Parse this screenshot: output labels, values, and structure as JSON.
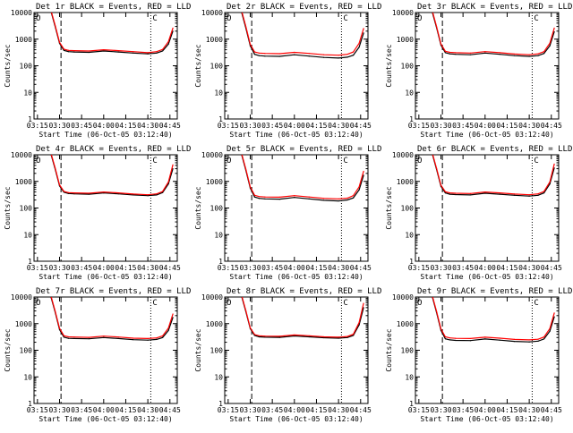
{
  "figure": {
    "ylabel": "Counts/sec",
    "xlabel": "Start Time (06-Oct-05 03:12:40)",
    "marker_left": "O",
    "marker_right": "C"
  },
  "chart_data": [
    {
      "type": "line",
      "title": "Det 1r BLACK = Events, RED = LLD",
      "xlabel": "Start Time (06-Oct-05 03:12:40)",
      "ylabel": "Counts/sec",
      "yscale": "log",
      "ylim": [
        1,
        10000
      ],
      "xlim": [
        "03:12:40",
        "04:50:00"
      ],
      "x_ticks": [
        "03:15",
        "03:30",
        "03:45",
        "04:00",
        "04:15",
        "04:30",
        "04:45"
      ],
      "y_ticks": [
        "1",
        "10",
        "100",
        "1000",
        "10000"
      ],
      "vlines": [
        {
          "x": "03:31",
          "style": "dashed"
        },
        {
          "x": "04:32",
          "style": "dotted"
        }
      ],
      "x": [
        "03:24",
        "03:27",
        "03:30",
        "03:33",
        "03:36",
        "03:40",
        "03:50",
        "04:00",
        "04:10",
        "04:20",
        "04:30",
        "04:36",
        "04:40",
        "04:44",
        "04:47"
      ],
      "series": [
        {
          "name": "Events",
          "color": "#000000",
          "values": [
            12000,
            3000,
            700,
            380,
            340,
            330,
            320,
            360,
            330,
            300,
            280,
            300,
            360,
            650,
            2000
          ]
        },
        {
          "name": "LLD",
          "color": "#ff0000",
          "values": [
            13000,
            3300,
            760,
            420,
            380,
            370,
            360,
            400,
            370,
            340,
            310,
            340,
            410,
            800,
            2600
          ]
        }
      ]
    },
    {
      "type": "line",
      "title": "Det 2r BLACK = Events, RED = LLD",
      "xlabel": "Start Time (06-Oct-05 03:12:40)",
      "ylabel": "Counts/sec",
      "yscale": "log",
      "ylim": [
        1,
        10000
      ],
      "xlim": [
        "03:12:40",
        "04:50:00"
      ],
      "x_ticks": [
        "03:15",
        "03:30",
        "03:45",
        "04:00",
        "04:15",
        "04:30",
        "04:45"
      ],
      "y_ticks": [
        "1",
        "10",
        "100",
        "1000",
        "10000"
      ],
      "vlines": [
        {
          "x": "03:31",
          "style": "dashed"
        },
        {
          "x": "04:32",
          "style": "dotted"
        }
      ],
      "x": [
        "03:24",
        "03:27",
        "03:30",
        "03:33",
        "03:36",
        "03:40",
        "03:50",
        "04:00",
        "04:10",
        "04:20",
        "04:30",
        "04:36",
        "04:40",
        "04:44",
        "04:47"
      ],
      "series": [
        {
          "name": "Events",
          "color": "#000000",
          "values": [
            11000,
            2600,
            560,
            270,
            240,
            230,
            225,
            260,
            230,
            205,
            195,
            210,
            250,
            500,
            1700
          ]
        },
        {
          "name": "LLD",
          "color": "#ff0000",
          "values": [
            12500,
            3000,
            640,
            330,
            300,
            290,
            285,
            320,
            290,
            260,
            250,
            270,
            330,
            700,
            2500
          ]
        }
      ]
    },
    {
      "type": "line",
      "title": "Det 3r BLACK = Events, RED = LLD",
      "xlabel": "Start Time (06-Oct-05 03:12:40)",
      "ylabel": "Counts/sec",
      "yscale": "log",
      "ylim": [
        1,
        10000
      ],
      "xlim": [
        "03:12:40",
        "04:50:00"
      ],
      "x_ticks": [
        "03:15",
        "03:30",
        "03:45",
        "04:00",
        "04:15",
        "04:30",
        "04:45"
      ],
      "y_ticks": [
        "1",
        "10",
        "100",
        "1000",
        "10000"
      ],
      "vlines": [
        {
          "x": "03:31",
          "style": "dashed"
        },
        {
          "x": "04:32",
          "style": "dotted"
        }
      ],
      "x": [
        "03:24",
        "03:27",
        "03:30",
        "03:33",
        "03:36",
        "03:40",
        "03:50",
        "04:00",
        "04:10",
        "04:20",
        "04:30",
        "04:36",
        "04:40",
        "04:44",
        "04:47"
      ],
      "series": [
        {
          "name": "Events",
          "color": "#000000",
          "values": [
            11000,
            2700,
            600,
            310,
            280,
            270,
            260,
            300,
            270,
            240,
            225,
            240,
            290,
            560,
            1900
          ]
        },
        {
          "name": "LLD",
          "color": "#ff0000",
          "values": [
            12500,
            3000,
            660,
            350,
            320,
            310,
            300,
            340,
            310,
            275,
            260,
            280,
            340,
            700,
            2600
          ]
        }
      ]
    },
    {
      "type": "line",
      "title": "Det 4r BLACK = Events, RED = LLD",
      "xlabel": "Start Time (06-Oct-05 03:12:40)",
      "ylabel": "Counts/sec",
      "yscale": "log",
      "ylim": [
        1,
        10000
      ],
      "xlim": [
        "03:12:40",
        "04:50:00"
      ],
      "x_ticks": [
        "03:15",
        "03:30",
        "03:45",
        "04:00",
        "04:15",
        "04:30",
        "04:45"
      ],
      "y_ticks": [
        "1",
        "10",
        "100",
        "1000",
        "10000"
      ],
      "vlines": [
        {
          "x": "03:31",
          "style": "dashed"
        },
        {
          "x": "04:32",
          "style": "dotted"
        }
      ],
      "x": [
        "03:24",
        "03:27",
        "03:30",
        "03:33",
        "03:36",
        "03:40",
        "03:50",
        "04:00",
        "04:10",
        "04:20",
        "04:30",
        "04:36",
        "04:40",
        "04:44",
        "04:47"
      ],
      "series": [
        {
          "name": "Events",
          "color": "#000000",
          "values": [
            11500,
            2900,
            680,
            390,
            350,
            340,
            330,
            370,
            340,
            310,
            290,
            310,
            380,
            800,
            3000
          ]
        },
        {
          "name": "LLD",
          "color": "#ff0000",
          "values": [
            12500,
            3200,
            740,
            420,
            380,
            370,
            360,
            400,
            370,
            335,
            315,
            340,
            420,
            950,
            4200
          ]
        }
      ]
    },
    {
      "type": "line",
      "title": "Det 5r BLACK = Events, RED = LLD",
      "xlabel": "Start Time (06-Oct-05 03:12:40)",
      "ylabel": "Counts/sec",
      "yscale": "log",
      "ylim": [
        1,
        10000
      ],
      "xlim": [
        "03:12:40",
        "04:50:00"
      ],
      "x_ticks": [
        "03:15",
        "03:30",
        "03:45",
        "04:00",
        "04:15",
        "04:30",
        "04:45"
      ],
      "y_ticks": [
        "1",
        "10",
        "100",
        "1000",
        "10000"
      ],
      "vlines": [
        {
          "x": "03:31",
          "style": "dashed"
        },
        {
          "x": "04:32",
          "style": "dotted"
        }
      ],
      "x": [
        "03:24",
        "03:27",
        "03:30",
        "03:33",
        "03:36",
        "03:40",
        "03:50",
        "04:00",
        "04:10",
        "04:20",
        "04:30",
        "04:36",
        "04:40",
        "04:44",
        "04:47"
      ],
      "series": [
        {
          "name": "Events",
          "color": "#000000",
          "values": [
            11000,
            2600,
            560,
            260,
            230,
            220,
            215,
            250,
            220,
            195,
            185,
            200,
            240,
            480,
            1700
          ]
        },
        {
          "name": "LLD",
          "color": "#ff0000",
          "values": [
            12000,
            2900,
            620,
            300,
            270,
            260,
            255,
            290,
            260,
            230,
            220,
            235,
            290,
            620,
            2400
          ]
        }
      ]
    },
    {
      "type": "line",
      "title": "Det 6r BLACK = Events, RED = LLD",
      "xlabel": "Start Time (06-Oct-05 03:12:40)",
      "ylabel": "Counts/sec",
      "yscale": "log",
      "ylim": [
        1,
        10000
      ],
      "xlim": [
        "03:12:40",
        "04:50:00"
      ],
      "x_ticks": [
        "03:15",
        "03:30",
        "03:45",
        "04:00",
        "04:15",
        "04:30",
        "04:45"
      ],
      "y_ticks": [
        "1",
        "10",
        "100",
        "1000",
        "10000"
      ],
      "vlines": [
        {
          "x": "03:31",
          "style": "dashed"
        },
        {
          "x": "04:32",
          "style": "dotted"
        }
      ],
      "x": [
        "03:24",
        "03:27",
        "03:30",
        "03:33",
        "03:36",
        "03:40",
        "03:50",
        "04:00",
        "04:10",
        "04:20",
        "04:30",
        "04:36",
        "04:40",
        "04:44",
        "04:47"
      ],
      "series": [
        {
          "name": "Events",
          "color": "#000000",
          "values": [
            11500,
            2800,
            650,
            370,
            330,
            320,
            310,
            360,
            330,
            300,
            280,
            300,
            370,
            800,
            3200
          ]
        },
        {
          "name": "LLD",
          "color": "#ff0000",
          "values": [
            12500,
            3100,
            720,
            410,
            370,
            360,
            350,
            400,
            370,
            335,
            315,
            340,
            420,
            950,
            4500
          ]
        }
      ]
    },
    {
      "type": "line",
      "title": "Det 7r BLACK = Events, RED = LLD",
      "xlabel": "Start Time (06-Oct-05 03:12:40)",
      "ylabel": "Counts/sec",
      "yscale": "log",
      "ylim": [
        1,
        10000
      ],
      "xlim": [
        "03:12:40",
        "04:50:00"
      ],
      "x_ticks": [
        "03:15",
        "03:30",
        "03:45",
        "04:00",
        "04:15",
        "04:30",
        "04:45"
      ],
      "y_ticks": [
        "1",
        "10",
        "100",
        "1000",
        "10000"
      ],
      "vlines": [
        {
          "x": "03:31",
          "style": "dashed"
        },
        {
          "x": "04:32",
          "style": "dotted"
        }
      ],
      "x": [
        "03:24",
        "03:27",
        "03:30",
        "03:33",
        "03:36",
        "03:40",
        "03:50",
        "04:00",
        "04:10",
        "04:20",
        "04:30",
        "04:36",
        "04:40",
        "04:44",
        "04:47"
      ],
      "series": [
        {
          "name": "Events",
          "color": "#000000",
          "values": [
            11000,
            2700,
            600,
            310,
            280,
            275,
            270,
            300,
            275,
            250,
            240,
            255,
            300,
            550,
            1700
          ]
        },
        {
          "name": "LLD",
          "color": "#ff0000",
          "values": [
            12000,
            3000,
            670,
            350,
            320,
            315,
            305,
            340,
            315,
            285,
            275,
            290,
            345,
            680,
            2300
          ]
        }
      ]
    },
    {
      "type": "line",
      "title": "Det 8r BLACK = Events, RED = LLD",
      "xlabel": "Start Time (06-Oct-05 03:12:40)",
      "ylabel": "Counts/sec",
      "yscale": "log",
      "ylim": [
        1,
        10000
      ],
      "xlim": [
        "03:12:40",
        "04:50:00"
      ],
      "x_ticks": [
        "03:15",
        "03:30",
        "03:45",
        "04:00",
        "04:15",
        "04:30",
        "04:45"
      ],
      "y_ticks": [
        "1",
        "10",
        "100",
        "1000",
        "10000"
      ],
      "vlines": [
        {
          "x": "03:31",
          "style": "dashed"
        },
        {
          "x": "04:32",
          "style": "dotted"
        }
      ],
      "x": [
        "03:24",
        "03:27",
        "03:30",
        "03:33",
        "03:36",
        "03:40",
        "03:50",
        "04:00",
        "04:10",
        "04:20",
        "04:30",
        "04:36",
        "04:40",
        "04:44",
        "04:47"
      ],
      "series": [
        {
          "name": "Events",
          "color": "#000000",
          "values": [
            11500,
            2800,
            650,
            360,
            320,
            310,
            305,
            345,
            320,
            295,
            285,
            300,
            360,
            900,
            4000
          ]
        },
        {
          "name": "LLD",
          "color": "#ff0000",
          "values": [
            12500,
            3100,
            700,
            390,
            350,
            340,
            335,
            375,
            350,
            320,
            310,
            330,
            400,
            1100,
            5800
          ]
        }
      ]
    },
    {
      "type": "line",
      "title": "Det 9r BLACK = Events, RED = LLD",
      "xlabel": "Start Time (06-Oct-05 03:12:40)",
      "ylabel": "Counts/sec",
      "yscale": "log",
      "ylim": [
        1,
        10000
      ],
      "xlim": [
        "03:12:40",
        "04:50:00"
      ],
      "x_ticks": [
        "03:15",
        "03:30",
        "03:45",
        "04:00",
        "04:15",
        "04:30",
        "04:45"
      ],
      "y_ticks": [
        "1",
        "10",
        "100",
        "1000",
        "10000"
      ],
      "vlines": [
        {
          "x": "03:31",
          "style": "dashed"
        },
        {
          "x": "04:32",
          "style": "dotted"
        }
      ],
      "x": [
        "03:24",
        "03:27",
        "03:30",
        "03:33",
        "03:36",
        "03:40",
        "03:50",
        "04:00",
        "04:10",
        "04:20",
        "04:30",
        "04:36",
        "04:40",
        "04:44",
        "04:47"
      ],
      "series": [
        {
          "name": "Events",
          "color": "#000000",
          "values": [
            11000,
            2600,
            560,
            270,
            245,
            235,
            230,
            265,
            240,
            215,
            205,
            220,
            265,
            520,
            1800
          ]
        },
        {
          "name": "LLD",
          "color": "#ff0000",
          "values": [
            12000,
            2900,
            630,
            320,
            290,
            280,
            275,
            310,
            285,
            255,
            245,
            260,
            315,
            650,
            2500
          ]
        }
      ]
    }
  ]
}
